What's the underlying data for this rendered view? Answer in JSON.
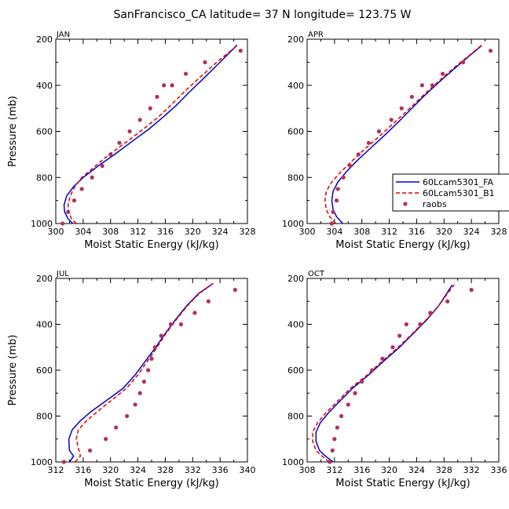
{
  "chart_data": {
    "title": "SanFrancisco_CA  latitude= 37 N longitude= 123.75 W",
    "xlabel": "Moist Static Energy (kJ/kg)",
    "ylabel": "Pressure (mb)",
    "type": "line",
    "legend": {
      "placement": "right of APR panel",
      "entries": [
        "60Lcam5301_FA",
        "60Lcam5301_B1",
        "raobs"
      ]
    },
    "colors": {
      "fa": "#0000cc",
      "b1": "#dd0000",
      "raobs": "#b03060"
    },
    "panels": [
      {
        "label": "JAN",
        "xlim": [
          300,
          328
        ],
        "ylim": [
          1000,
          200
        ],
        "xticks": [
          300,
          304,
          308,
          312,
          316,
          320,
          324,
          328
        ],
        "yticks": [
          200,
          400,
          600,
          800,
          1000
        ],
        "series": [
          {
            "name": "60Lcam5301_FA",
            "style": "solid",
            "x": [
              302.5,
              301.8,
              301.3,
              301.2,
              301.6,
              302.6,
              304.0,
              306.2,
              308.6,
              311.3,
              313.6,
              315.6,
              317.5,
              319.5,
              321.6,
              324.0,
              326.5
            ],
            "y": [
              1000,
              980,
              950,
              920,
              880,
              840,
              800,
              750,
              700,
              640,
              590,
              540,
              490,
              430,
              370,
              300,
              225
            ]
          },
          {
            "name": "60Lcam5301_B1",
            "style": "dashed",
            "x": [
              303.0,
              302.3,
              301.9,
              301.8,
              302.1,
              302.8,
              303.8,
              305.8,
              307.8,
              310.6,
              312.8,
              314.9,
              316.7,
              318.7,
              320.9,
              323.5,
              326.5
            ],
            "y": [
              1000,
              980,
              950,
              920,
              880,
              840,
              800,
              750,
              700,
              640,
              590,
              540,
              490,
              430,
              370,
              300,
              228
            ]
          },
          {
            "name": "raobs",
            "style": "points",
            "x": [
              301.0,
              301.8,
              302.7,
              303.8,
              305.3,
              306.8,
              308.0,
              309.3,
              310.8,
              312.3,
              313.8,
              314.8,
              315.8,
              317.0,
              319.0,
              321.8,
              327.0
            ],
            "y": [
              1000,
              950,
              900,
              850,
              800,
              750,
              700,
              650,
              600,
              550,
              500,
              450,
              400,
              400,
              350,
              300,
              250
            ]
          }
        ]
      },
      {
        "label": "APR",
        "xlim": [
          300,
          328
        ],
        "ylim": [
          1000,
          200
        ],
        "xticks": [
          300,
          304,
          308,
          312,
          316,
          320,
          324,
          328
        ],
        "yticks": [
          200,
          400,
          600,
          800,
          1000
        ],
        "series": [
          {
            "name": "60Lcam5301_FA",
            "style": "solid",
            "x": [
              305.2,
              304.3,
              303.8,
              303.6,
              303.8,
              304.5,
              305.6,
              307.2,
              309.0,
              311.2,
              313.3,
              315.3,
              317.3,
              319.5,
              321.8,
              323.8,
              325.5
            ],
            "y": [
              1000,
              970,
              940,
              900,
              860,
              820,
              780,
              730,
              680,
              620,
              560,
              500,
              440,
              380,
              320,
              270,
              228
            ]
          },
          {
            "name": "60Lcam5301_B1",
            "style": "dashed",
            "x": [
              304.2,
              303.3,
              302.8,
              302.6,
              302.8,
              303.6,
              304.8,
              306.5,
              308.3,
              310.6,
              312.8,
              315.0,
              317.1,
              319.3,
              321.6,
              323.7,
              325.5
            ],
            "y": [
              1000,
              970,
              940,
              900,
              860,
              820,
              780,
              730,
              680,
              620,
              560,
              500,
              440,
              380,
              320,
              270,
              226
            ]
          },
          {
            "name": "raobs",
            "style": "points",
            "x": [
              303.6,
              303.8,
              304.3,
              304.5,
              305.3,
              306.3,
              307.5,
              309.0,
              310.5,
              312.3,
              313.8,
              315.3,
              316.8,
              318.3,
              319.8,
              322.8,
              326.8
            ],
            "y": [
              1000,
              950,
              900,
              850,
              800,
              750,
              700,
              650,
              600,
              550,
              500,
              450,
              400,
              400,
              350,
              300,
              250
            ]
          }
        ]
      },
      {
        "label": "JUL",
        "xlim": [
          312,
          340
        ],
        "ylim": [
          1000,
          200
        ],
        "xticks": [
          312,
          316,
          320,
          324,
          328,
          332,
          336,
          340
        ],
        "yticks": [
          200,
          400,
          600,
          800,
          1000
        ],
        "series": [
          {
            "name": "60Lcam5301_FA",
            "style": "solid",
            "x": [
              314.0,
              314.6,
              314.0,
              313.9,
              314.4,
              315.6,
              317.2,
              319.5,
              321.8,
              323.6,
              325.1,
              326.6,
              328.0,
              329.5,
              331.1,
              332.9,
              335.0
            ],
            "y": [
              1000,
              975,
              950,
              900,
              860,
              820,
              780,
              730,
              680,
              620,
              560,
              500,
              440,
              380,
              320,
              265,
              222
            ]
          },
          {
            "name": "60Lcam5301_B1",
            "style": "dashed",
            "x": [
              314.8,
              315.6,
              315.4,
              315.0,
              315.3,
              316.5,
              318.1,
              320.2,
              322.3,
              324.0,
              325.4,
              326.8,
              328.1,
              329.6,
              331.2,
              333.0,
              335.0
            ],
            "y": [
              1000,
              975,
              950,
              900,
              860,
              820,
              780,
              730,
              680,
              620,
              560,
              500,
              440,
              380,
              320,
              265,
              222
            ]
          },
          {
            "name": "raobs",
            "style": "points",
            "x": [
              313.2,
              317.0,
              319.3,
              320.8,
              322.4,
              323.6,
              324.3,
              324.9,
              325.5,
              326.0,
              326.5,
              327.4,
              328.8,
              330.3,
              332.3,
              334.3,
              338.2
            ],
            "y": [
              1000,
              950,
              900,
              850,
              800,
              750,
              700,
              650,
              600,
              550,
              500,
              450,
              400,
              400,
              350,
              300,
              250
            ]
          }
        ]
      },
      {
        "label": "OCT",
        "xlim": [
          308,
          336
        ],
        "ylim": [
          1000,
          200
        ],
        "xticks": [
          308,
          312,
          316,
          320,
          324,
          328,
          332,
          336
        ],
        "yticks": [
          200,
          400,
          600,
          800,
          1000
        ],
        "series": [
          {
            "name": "60Lcam5301_FA",
            "style": "solid",
            "x": [
              311.8,
              310.7,
              309.8,
              309.3,
              309.3,
              309.9,
              311.0,
              312.6,
              314.6,
              317.0,
              319.2,
              321.5,
              323.5,
              325.5,
              327.2,
              328.3,
              329.2
            ],
            "y": [
              1000,
              975,
              950,
              910,
              870,
              830,
              790,
              740,
              680,
              620,
              560,
              500,
              440,
              380,
              320,
              270,
              228
            ]
          },
          {
            "name": "60Lcam5301_B1",
            "style": "dashed",
            "x": [
              311.2,
              310.2,
              309.3,
              308.8,
              308.8,
              309.5,
              310.6,
              312.3,
              314.3,
              316.8,
              319.0,
              321.3,
              323.4,
              325.4,
              327.2,
              328.4,
              329.5
            ],
            "y": [
              1000,
              975,
              950,
              910,
              870,
              830,
              790,
              740,
              680,
              620,
              560,
              500,
              440,
              380,
              320,
              270,
              228
            ]
          },
          {
            "name": "raobs",
            "style": "points",
            "x": [
              311.3,
              311.7,
              312.0,
              312.4,
              313.0,
              314.0,
              315.0,
              316.0,
              317.5,
              319.0,
              320.5,
              321.5,
              322.5,
              324.5,
              326.0,
              328.5,
              332.0
            ],
            "y": [
              1000,
              950,
              900,
              850,
              800,
              750,
              700,
              650,
              600,
              550,
              500,
              450,
              400,
              400,
              350,
              300,
              250
            ]
          }
        ]
      }
    ]
  }
}
